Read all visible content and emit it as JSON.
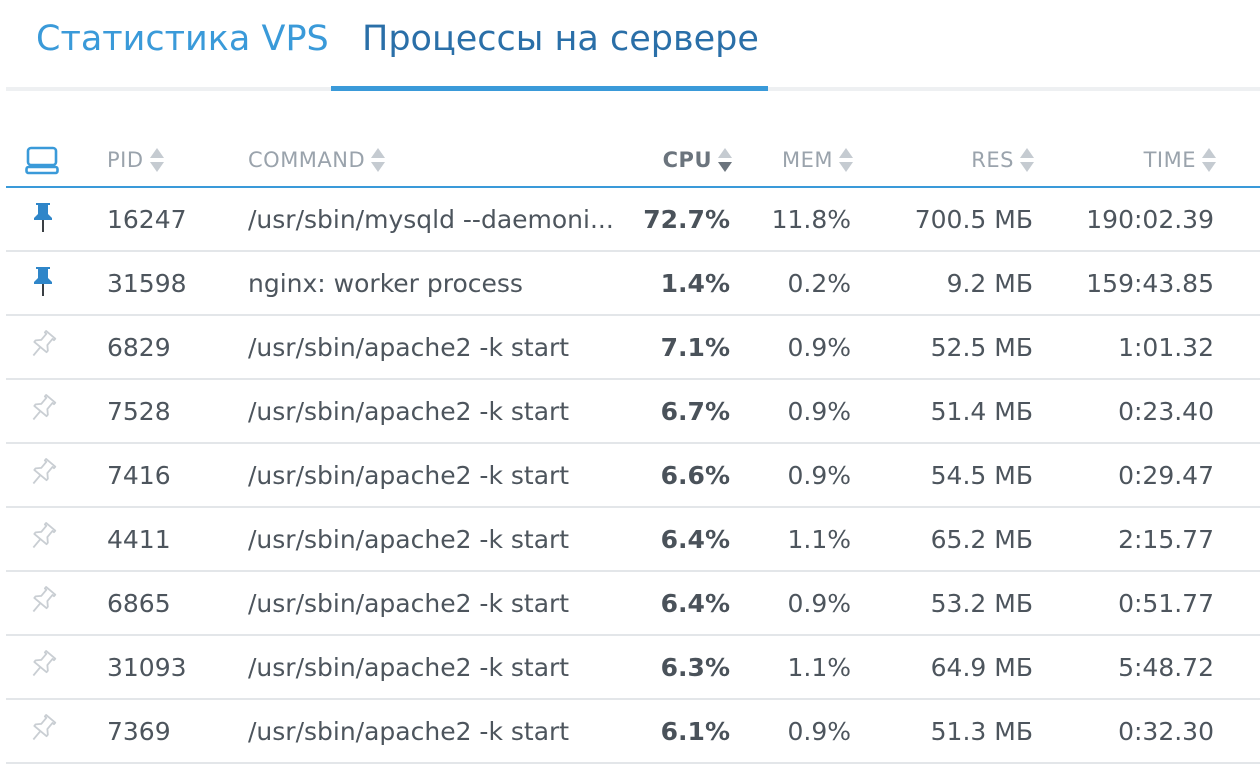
{
  "tabs": [
    {
      "label": "Статистика VPS",
      "active": false
    },
    {
      "label": "Процессы на сервере",
      "active": true
    }
  ],
  "table": {
    "columns": {
      "pid": "PID",
      "command": "COMMAND",
      "cpu": "CPU",
      "mem": "MEM",
      "res": "RES",
      "time": "TIME"
    },
    "sorted_by": "cpu",
    "sort_direction": "desc",
    "rows": [
      {
        "pinned": true,
        "pid": "16247",
        "command": "/usr/sbin/mysqld --daemoni...",
        "cpu": "72.7%",
        "mem": "11.8%",
        "res": "700.5 МБ",
        "time": "190:02.39"
      },
      {
        "pinned": true,
        "pid": "31598",
        "command": "nginx: worker process",
        "cpu": "1.4%",
        "mem": "0.2%",
        "res": "9.2 МБ",
        "time": "159:43.85"
      },
      {
        "pinned": false,
        "pid": "6829",
        "command": "/usr/sbin/apache2 -k start",
        "cpu": "7.1%",
        "mem": "0.9%",
        "res": "52.5 МБ",
        "time": "1:01.32"
      },
      {
        "pinned": false,
        "pid": "7528",
        "command": "/usr/sbin/apache2 -k start",
        "cpu": "6.7%",
        "mem": "0.9%",
        "res": "51.4 МБ",
        "time": "0:23.40"
      },
      {
        "pinned": false,
        "pid": "7416",
        "command": "/usr/sbin/apache2 -k start",
        "cpu": "6.6%",
        "mem": "0.9%",
        "res": "54.5 МБ",
        "time": "0:29.47"
      },
      {
        "pinned": false,
        "pid": "4411",
        "command": "/usr/sbin/apache2 -k start",
        "cpu": "6.4%",
        "mem": "1.1%",
        "res": "65.2 МБ",
        "time": "2:15.77"
      },
      {
        "pinned": false,
        "pid": "6865",
        "command": "/usr/sbin/apache2 -k start",
        "cpu": "6.4%",
        "mem": "0.9%",
        "res": "53.2 МБ",
        "time": "0:51.77"
      },
      {
        "pinned": false,
        "pid": "31093",
        "command": "/usr/sbin/apache2 -k start",
        "cpu": "6.3%",
        "mem": "1.1%",
        "res": "64.9 МБ",
        "time": "5:48.72"
      },
      {
        "pinned": false,
        "pid": "7369",
        "command": "/usr/sbin/apache2 -k start",
        "cpu": "6.1%",
        "mem": "0.9%",
        "res": "51.3 МБ",
        "time": "0:32.30"
      }
    ]
  },
  "icons": {
    "header": "monitor-icon",
    "pinned": "pin-filled-icon",
    "unpinned": "pin-outline-icon",
    "sort": "sort-arrows-icon"
  },
  "colors": {
    "accent": "#3a9ad9",
    "active_tab_text": "#2a6fa8",
    "header_text": "#9aa3ac",
    "row_text": "#4d555d",
    "divider": "#e3e6e9",
    "pin_filled": "#2f86c9",
    "pin_outline": "#c9ced3"
  }
}
